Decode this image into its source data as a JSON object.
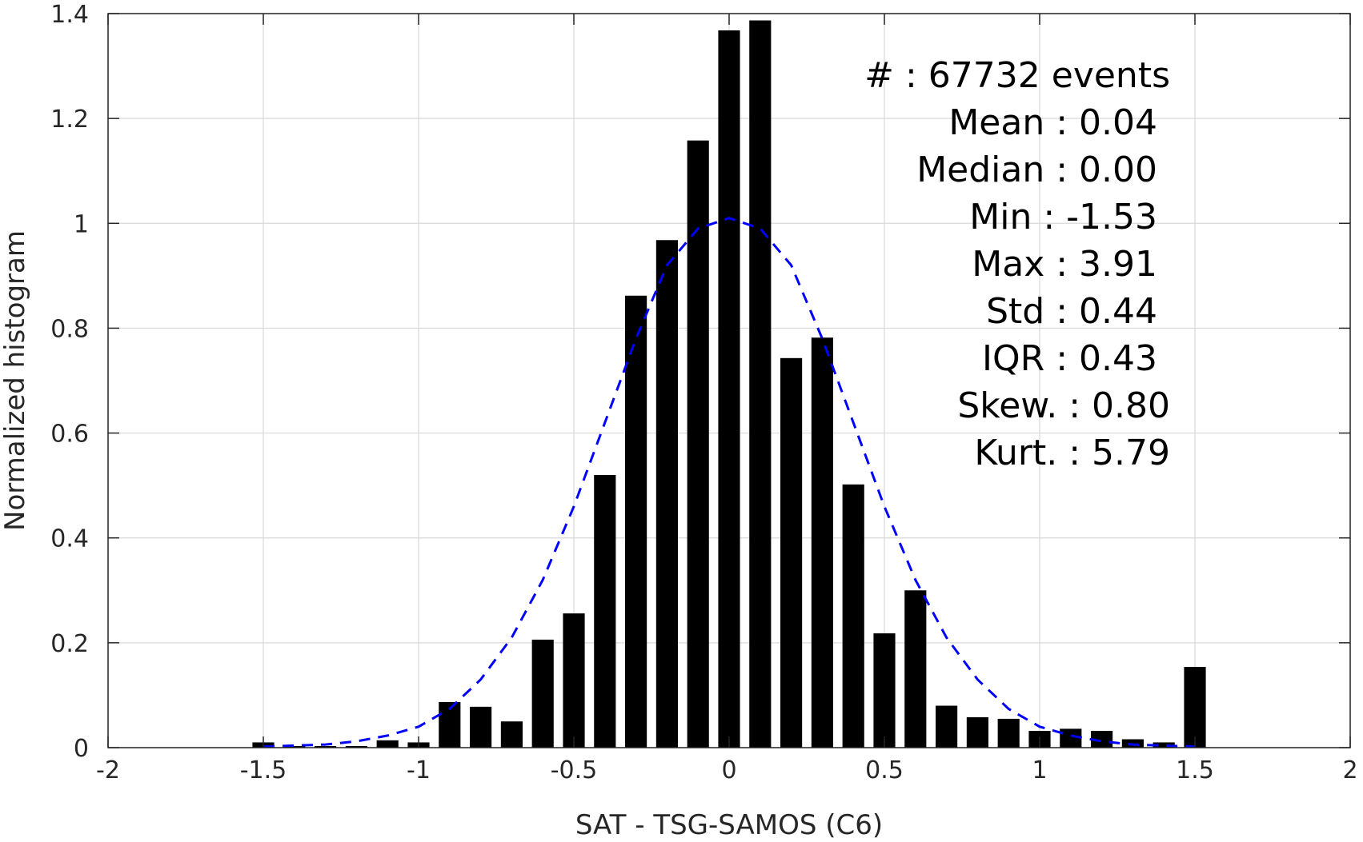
{
  "chart_data": {
    "type": "bar",
    "xlabel": "SAT - TSG-SAMOS (C6)",
    "ylabel": "Normalized histogram",
    "xlim": [
      -2,
      2
    ],
    "ylim": [
      0,
      1.4
    ],
    "x_ticks": [
      "-2",
      "-1.5",
      "-1",
      "-0.5",
      "0",
      "0.5",
      "1",
      "1.5",
      "2"
    ],
    "y_ticks": [
      "0",
      "0.2",
      "0.4",
      "0.6",
      "0.8",
      "1",
      "1.2",
      "1.4"
    ],
    "grid": true,
    "bar_width": 0.07,
    "bars": {
      "x": [
        -1.5,
        -1.4,
        -1.3,
        -1.2,
        -1.1,
        -1.0,
        -0.9,
        -0.8,
        -0.7,
        -0.6,
        -0.5,
        -0.4,
        -0.3,
        -0.2,
        -0.1,
        0.0,
        0.1,
        0.2,
        0.3,
        0.4,
        0.5,
        0.6,
        0.7,
        0.8,
        0.9,
        1.0,
        1.1,
        1.2,
        1.3,
        1.4,
        1.5
      ],
      "values": [
        0.01,
        0.003,
        0.003,
        0.003,
        0.014,
        0.01,
        0.087,
        0.078,
        0.05,
        0.206,
        0.256,
        0.52,
        0.862,
        0.968,
        1.158,
        1.368,
        1.387,
        0.743,
        0.782,
        0.502,
        0.218,
        0.3,
        0.08,
        0.058,
        0.055,
        0.032,
        0.036,
        0.032,
        0.016,
        0.01,
        0.154
      ]
    },
    "fit_curve": {
      "style": "dashed",
      "color": "#0000ff",
      "x": [
        -1.5,
        -1.4,
        -1.3,
        -1.2,
        -1.1,
        -1.0,
        -0.9,
        -0.8,
        -0.7,
        -0.6,
        -0.5,
        -0.4,
        -0.3,
        -0.2,
        -0.1,
        0.0,
        0.1,
        0.2,
        0.3,
        0.4,
        0.5,
        0.6,
        0.7,
        0.8,
        0.9,
        1.0,
        1.1,
        1.2,
        1.3,
        1.4,
        1.5
      ],
      "y": [
        0.002,
        0.004,
        0.006,
        0.012,
        0.023,
        0.04,
        0.074,
        0.13,
        0.21,
        0.32,
        0.46,
        0.62,
        0.78,
        0.92,
        0.99,
        1.01,
        0.99,
        0.92,
        0.78,
        0.62,
        0.46,
        0.32,
        0.21,
        0.13,
        0.074,
        0.04,
        0.023,
        0.012,
        0.006,
        0.004,
        0.002
      ]
    },
    "annotations": [
      "#   : 67732 events",
      "Mean : 0.04",
      "Median : 0.00",
      "Min : -1.53",
      "Max : 3.91",
      "Std : 0.44",
      "IQR : 0.43",
      "Skew. : 0.80",
      "Kurt. : 5.79"
    ]
  },
  "colors": {
    "bars": "#000000",
    "fit": "#0000ff",
    "grid": "#d9d9d9",
    "axes": "#262626"
  }
}
